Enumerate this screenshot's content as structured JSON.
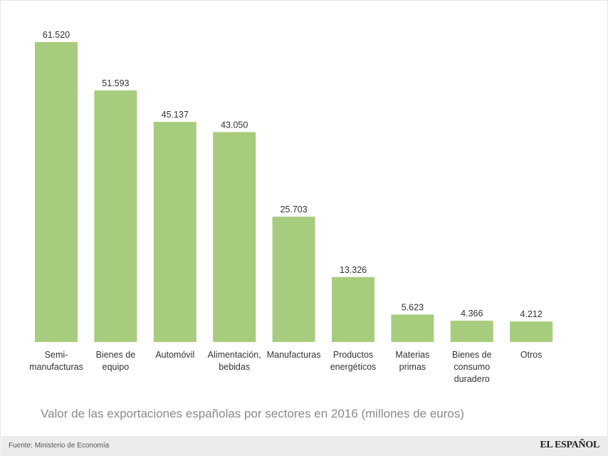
{
  "chart_data": {
    "type": "bar",
    "categories": [
      [
        "Semi-",
        "manufacturas"
      ],
      [
        "Bienes de",
        "equipo"
      ],
      [
        "Automóvil"
      ],
      [
        "Alimentación,",
        "bebidas"
      ],
      [
        "Manufacturas"
      ],
      [
        "Productos",
        "energéticos"
      ],
      [
        "Materias",
        "primas"
      ],
      [
        "Bienes de",
        "consumo",
        "duradero"
      ],
      [
        "Otros"
      ]
    ],
    "values": [
      61520,
      51593,
      45137,
      43050,
      25703,
      13326,
      5623,
      4366,
      4212
    ],
    "value_labels": [
      "61.520",
      "51.593",
      "45.137",
      "43.050",
      "25.703",
      "13.326",
      "5.623",
      "4.366",
      "4.212"
    ],
    "title": "Valor de las exportaciones españolas por sectores en 2016 (millones de euros)",
    "xlabel": "",
    "ylabel": "",
    "ylim": [
      0,
      61520
    ],
    "bar_color": "#a8cc7e"
  },
  "caption": "Valor de las exportaciones españolas por sectores en 2016 (millones de euros)",
  "footer": {
    "source": "Fuente: Ministerio de Economía",
    "brand": "EL ESPAÑOL"
  }
}
